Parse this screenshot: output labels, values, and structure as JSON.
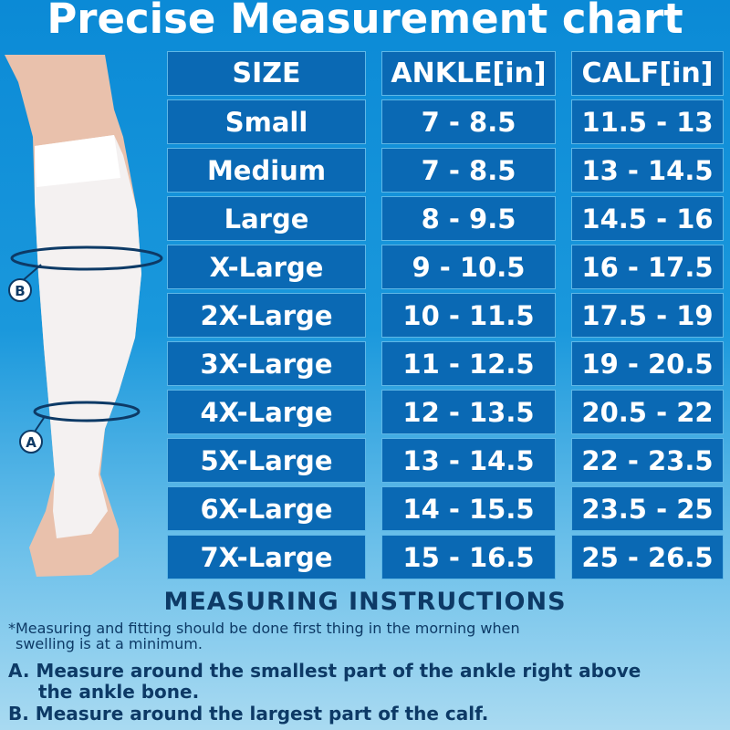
{
  "title": "Precise Measurement chart",
  "markers": {
    "a": "A",
    "b": "B"
  },
  "table": {
    "headers": [
      "SIZE",
      "ANKLE[in]",
      "CALF[in]"
    ],
    "rows": [
      [
        "Small",
        "7 - 8.5",
        "11.5 - 13"
      ],
      [
        "Medium",
        "7 - 8.5",
        "13 - 14.5"
      ],
      [
        "Large",
        "8 - 9.5",
        "14.5 - 16"
      ],
      [
        "X-Large",
        "9 - 10.5",
        "16 - 17.5"
      ],
      [
        "2X-Large",
        "10 - 11.5",
        "17.5 - 19"
      ],
      [
        "3X-Large",
        "11 - 12.5",
        "19 - 20.5"
      ],
      [
        "4X-Large",
        "12 - 13.5",
        "20.5 - 22"
      ],
      [
        "5X-Large",
        "13 - 14.5",
        "22 - 23.5"
      ],
      [
        "6X-Large",
        "14 - 15.5",
        "23.5 - 25"
      ],
      [
        "7X-Large",
        "15 - 16.5",
        "25 - 26.5"
      ]
    ]
  },
  "instructions": {
    "title": "MEASURING INSTRUCTIONS",
    "note_line1": "*Measuring and fitting should be done first thing in the morning when",
    "note_line2": "swelling is at a minimum.",
    "a_line1": "A. Measure around the smallest part of the ankle right above",
    "a_line2": "the ankle bone.",
    "b_line1": "B. Measure around the largest part of the calf."
  },
  "colors": {
    "cell": "#0a69b4",
    "instructions_text": "#0d3a66"
  }
}
